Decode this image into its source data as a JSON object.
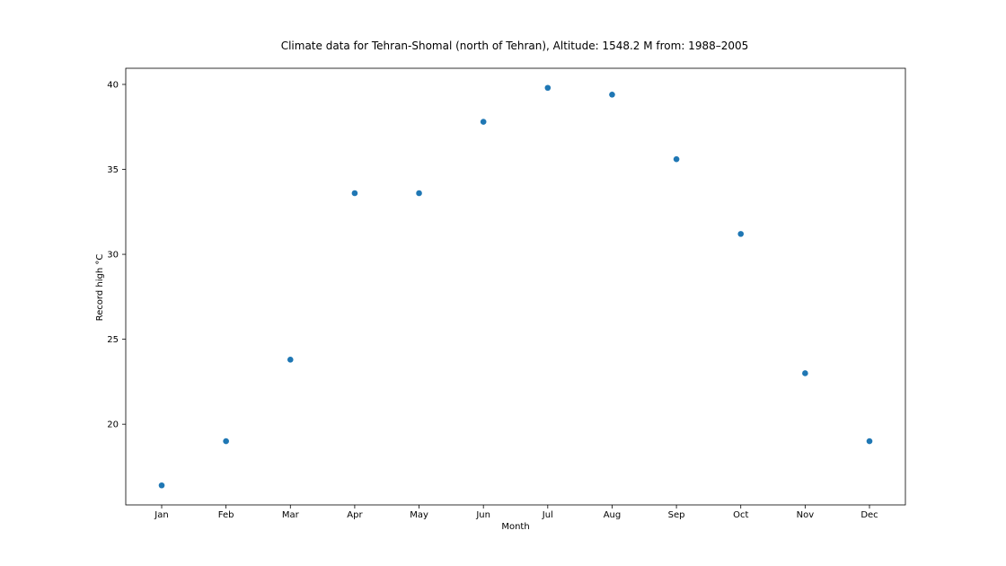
{
  "chart_data": {
    "type": "scatter",
    "title": "Climate data for Tehran-Shomal (north of Tehran), Altitude: 1548.2 M from: 1988–2005",
    "xlabel": "Month",
    "ylabel": "Record high °C",
    "categories": [
      "Jan",
      "Feb",
      "Mar",
      "Apr",
      "May",
      "Jun",
      "Jul",
      "Aug",
      "Sep",
      "Oct",
      "Nov",
      "Dec"
    ],
    "values": [
      16.4,
      19.0,
      23.8,
      33.6,
      33.6,
      37.8,
      39.8,
      39.4,
      35.6,
      31.2,
      23.0,
      19.0
    ],
    "ylim": [
      15.25,
      40.95
    ],
    "yticks": [
      20,
      25,
      30,
      35,
      40
    ],
    "ytick_labels": [
      "20",
      "25",
      "30",
      "35",
      "40"
    ],
    "grid": false,
    "marker_color": "#1f77b4"
  }
}
